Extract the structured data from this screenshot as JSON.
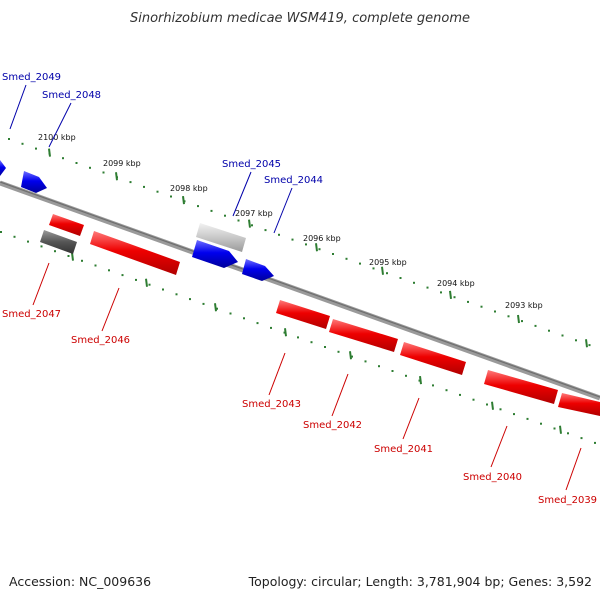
{
  "title": "Sinorhizobium medicae WSM419, complete genome",
  "footer": {
    "accession": "Accession: NC_009636",
    "summary": "Topology: circular; Length: 3,781,904 bp; Genes: 3,592"
  },
  "colors": {
    "forward": "#0000cc",
    "reverse": "#ee0000",
    "pseudo_dark": "#555555",
    "pseudo_light": "#c8c8c8",
    "backbone": "#808080",
    "ticks": "#2e7d32",
    "label_forward": "#0000aa",
    "label_reverse": "#cc0000"
  },
  "kbp_labels": [
    "2100 kbp",
    "2099 kbp",
    "2098 kbp",
    "2097 kbp",
    "2096 kbp",
    "2095 kbp",
    "2094 kbp",
    "2093 kbp"
  ],
  "genes": [
    {
      "name": "Smed_2049",
      "strand": "forward"
    },
    {
      "name": "Smed_2048",
      "strand": "forward"
    },
    {
      "name": "Smed_2047",
      "strand": "reverse",
      "style": "pseudo"
    },
    {
      "name": "Smed_2046",
      "strand": "reverse"
    },
    {
      "name": "Smed_2045",
      "strand": "forward",
      "style": "pseudo"
    },
    {
      "name": "Smed_2044",
      "strand": "forward"
    },
    {
      "name": "Smed_2043",
      "strand": "reverse"
    },
    {
      "name": "Smed_2042",
      "strand": "reverse"
    },
    {
      "name": "Smed_2041",
      "strand": "reverse"
    },
    {
      "name": "Smed_2040",
      "strand": "reverse"
    },
    {
      "name": "Smed_2039",
      "strand": "reverse"
    }
  ]
}
